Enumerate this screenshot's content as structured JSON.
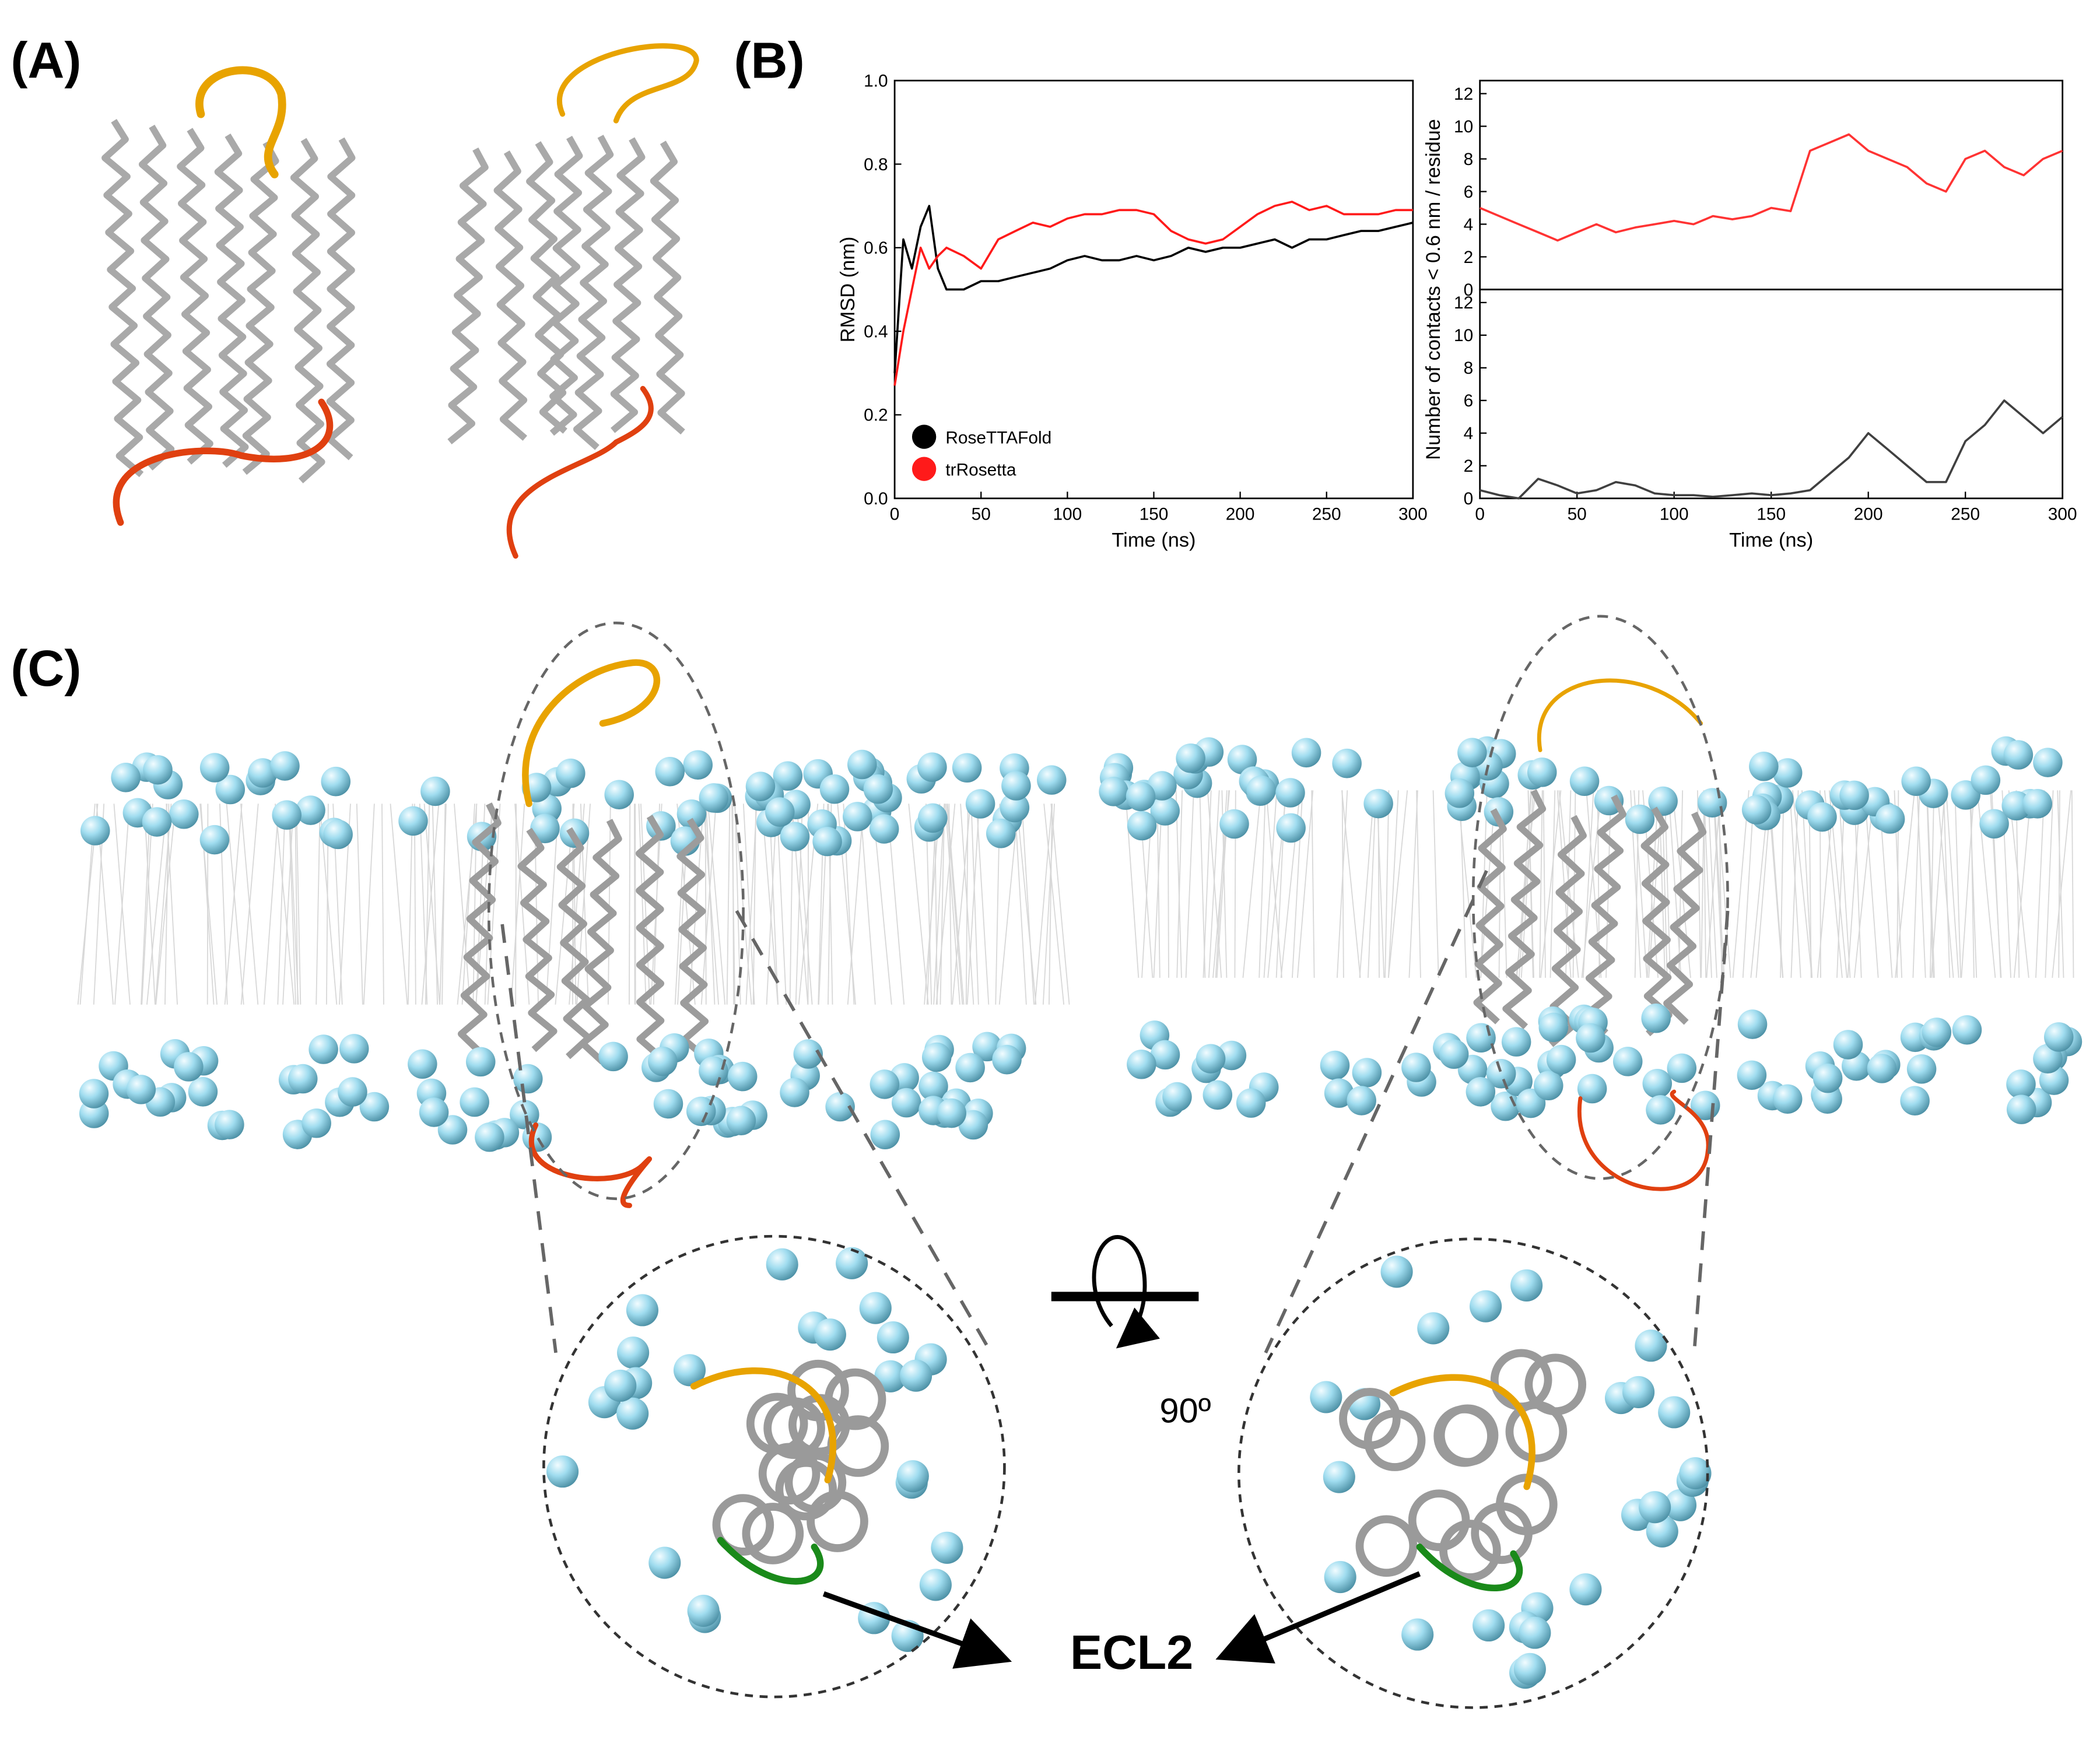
{
  "figure": {
    "panel_labels": [
      "(A)",
      "(B)",
      "(C)"
    ],
    "rotation_label": "90º",
    "annotation": "ECL2"
  },
  "chart_data": [
    {
      "type": "line",
      "xlabel": "Time (ns)",
      "ylabel": "RMSD (nm)",
      "x": [
        0,
        5,
        10,
        15,
        20,
        25,
        30,
        40,
        50,
        60,
        70,
        80,
        90,
        100,
        110,
        120,
        130,
        140,
        150,
        160,
        170,
        180,
        190,
        200,
        210,
        220,
        230,
        240,
        250,
        260,
        270,
        280,
        290,
        300
      ],
      "xlim": [
        0,
        300
      ],
      "ylim": [
        0,
        1.0
      ],
      "xticks": [
        0,
        50,
        100,
        150,
        200,
        250,
        300
      ],
      "yticks": [
        {
          "value": 0,
          "label": "0.0"
        },
        {
          "value": 0.2,
          "label": "0.2"
        },
        {
          "value": 0.4,
          "label": "0.4"
        },
        {
          "value": 0.6,
          "label": "0.6"
        },
        {
          "value": 0.8,
          "label": "0.8"
        },
        {
          "value": 1.0,
          "label": "1.0"
        }
      ],
      "legend": "lower left",
      "series": [
        {
          "name": "RoseTTAFold",
          "color": "#000000",
          "values": [
            0.3,
            0.62,
            0.55,
            0.65,
            0.7,
            0.55,
            0.5,
            0.5,
            0.52,
            0.52,
            0.53,
            0.54,
            0.55,
            0.57,
            0.58,
            0.57,
            0.57,
            0.58,
            0.57,
            0.58,
            0.6,
            0.59,
            0.6,
            0.6,
            0.61,
            0.62,
            0.6,
            0.62,
            0.62,
            0.63,
            0.64,
            0.64,
            0.65,
            0.66
          ]
        },
        {
          "name": "trRosetta",
          "color": "#ff1a1a",
          "values": [
            0.27,
            0.4,
            0.5,
            0.6,
            0.55,
            0.58,
            0.6,
            0.58,
            0.55,
            0.62,
            0.64,
            0.66,
            0.65,
            0.67,
            0.68,
            0.68,
            0.69,
            0.69,
            0.68,
            0.64,
            0.62,
            0.61,
            0.62,
            0.65,
            0.68,
            0.7,
            0.71,
            0.69,
            0.7,
            0.68,
            0.68,
            0.68,
            0.69,
            0.69
          ]
        }
      ]
    },
    {
      "type": "line",
      "ylabel": "Number of contacts < 0.6 nm / residue",
      "x": [
        0,
        10,
        20,
        30,
        40,
        50,
        60,
        70,
        80,
        90,
        100,
        110,
        120,
        130,
        140,
        150,
        160,
        170,
        180,
        190,
        200,
        210,
        220,
        230,
        240,
        250,
        260,
        270,
        280,
        290,
        300
      ],
      "xlim": [
        0,
        300
      ],
      "ylim": [
        0,
        12.8
      ],
      "yticks": [
        0,
        2,
        4,
        6,
        8,
        10,
        12
      ],
      "series": [
        {
          "color": "#ff3333",
          "values": [
            5,
            4.5,
            4,
            3.5,
            3,
            3.5,
            4,
            3.5,
            3.8,
            4,
            4.2,
            4,
            4.5,
            4.3,
            4.5,
            5,
            4.8,
            8.5,
            9,
            9.5,
            8.5,
            8,
            7.5,
            6.5,
            6,
            8,
            8.5,
            7.5,
            7,
            8,
            8.5
          ]
        }
      ]
    },
    {
      "type": "line",
      "xlabel": "Time (ns)",
      "x": [
        0,
        10,
        20,
        30,
        40,
        50,
        60,
        70,
        80,
        90,
        100,
        110,
        120,
        130,
        140,
        150,
        160,
        170,
        180,
        190,
        200,
        210,
        220,
        230,
        240,
        250,
        260,
        270,
        280,
        290,
        300
      ],
      "xlim": [
        0,
        300
      ],
      "ylim": [
        0,
        12.8
      ],
      "xticks": [
        0,
        50,
        100,
        150,
        200,
        250,
        300
      ],
      "yticks": [
        0,
        2,
        4,
        6,
        8,
        10,
        12
      ],
      "series": [
        {
          "color": "#404040",
          "values": [
            0.5,
            0.2,
            0,
            1.2,
            0.8,
            0.3,
            0.5,
            1,
            0.8,
            0.3,
            0.2,
            0.2,
            0.1,
            0.2,
            0.3,
            0.2,
            0.3,
            0.5,
            1.5,
            2.5,
            4,
            3,
            2,
            1,
            1,
            3.5,
            4.5,
            6,
            5,
            4,
            5
          ]
        }
      ]
    }
  ]
}
